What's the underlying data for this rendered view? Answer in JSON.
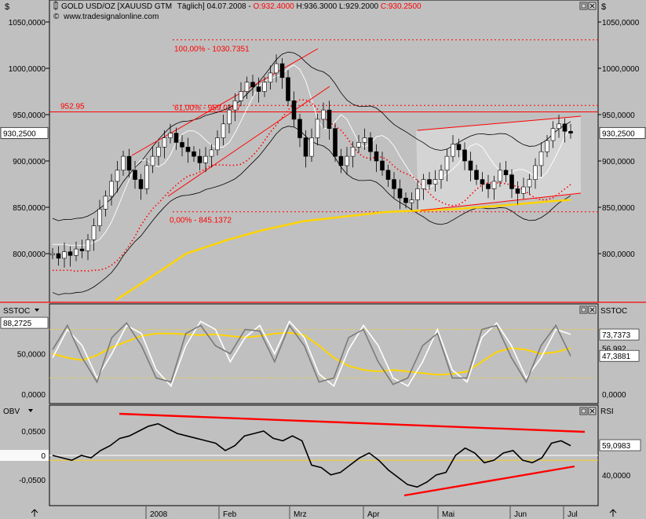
{
  "header": {
    "symbol": "GOLD USD/OZ [XAUUSD GTM",
    "period": "Täglich] 04.07.2008 - ",
    "ohlc_o": "O:932.4000",
    "ohlc_h": "H:936.3000",
    "ohlc_l": "L:929.2000",
    "ohlc_c": "C:930.2500",
    "website": "www.tradesignalonline.com",
    "currency_left": "$",
    "currency_right": "$"
  },
  "colors": {
    "background": "#c0c0c0",
    "red": "#ff0000",
    "yellow": "#ffd400",
    "white": "#ffffff",
    "black": "#000000",
    "gray_line": "#7a7a7a"
  },
  "icons": [
    "menu-arrow-icon",
    "maximize-icon",
    "close-icon",
    "up-arrow-icon"
  ],
  "chart_data": [
    {
      "type": "line",
      "panel": "price",
      "title": "GOLD USD/OZ",
      "yticks": [
        "1050,0000",
        "1000,0000",
        "950,0000",
        "900,0000",
        "850,0000",
        "800,0000"
      ],
      "ytick_values": [
        1050,
        1000,
        950,
        900,
        850,
        800
      ],
      "ylim": [
        750,
        1063
      ],
      "current_label": "930,2500",
      "current_value": 930.25,
      "xticks": [
        "2008",
        "Feb",
        "Mrz",
        "Apr",
        "Mai",
        "Jun",
        "Jul"
      ],
      "annotations": {
        "fib_100": "100,00% - 1030.7351",
        "fib_61": "61,00% - 959.0367",
        "fib_0": "0,00% - 845.1372",
        "level": "952.95"
      },
      "levels": {
        "fib_100": 1030.7351,
        "fib_61": 959.0367,
        "fib_0": 845.1372,
        "resistance": 952.95,
        "dotted_upper": 960
      },
      "price_closes": [
        800,
        795,
        802,
        798,
        805,
        803,
        815,
        830,
        848,
        862,
        878,
        890,
        905,
        890,
        880,
        870,
        895,
        905,
        915,
        925,
        930,
        920,
        915,
        910,
        905,
        898,
        905,
        912,
        925,
        940,
        955,
        965,
        975,
        985,
        980,
        975,
        985,
        995,
        1005,
        990,
        965,
        945,
        925,
        905,
        925,
        945,
        955,
        935,
        905,
        895,
        905,
        915,
        920,
        925,
        910,
        900,
        890,
        880,
        870,
        860,
        855,
        858,
        870,
        880,
        875,
        880,
        890,
        905,
        918,
        912,
        900,
        890,
        880,
        875,
        870,
        878,
        890,
        885,
        870,
        865,
        872,
        880,
        895,
        910,
        922,
        935,
        940,
        932,
        930
      ],
      "sma_yellow": [
        [
          0.38,
          750
        ],
        [
          0.55,
          770
        ],
        [
          0.8,
          800
        ],
        [
          1.05,
          815
        ],
        [
          1.25,
          825
        ],
        [
          1.5,
          835
        ],
        [
          1.75,
          840
        ],
        [
          2.0,
          845
        ],
        [
          2.4,
          848
        ],
        [
          2.7,
          852
        ],
        [
          2.95,
          856
        ],
        [
          3.1,
          858
        ]
      ],
      "series": [
        {
          "name": "",
          "role": "close",
          "color": "#000000"
        },
        {
          "name": "",
          "role": "upper band",
          "color": "#000000"
        },
        {
          "name": "",
          "role": "lower band",
          "color": "#000000"
        },
        {
          "name": "",
          "role": "white average",
          "color": "#ffffff"
        },
        {
          "name": "",
          "role": "dotted red average",
          "color": "#ff0000"
        },
        {
          "name": "",
          "role": "moving average",
          "color": "#ffd400"
        }
      ]
    },
    {
      "type": "line",
      "panel": "oscillator",
      "title": "SSTOC",
      "yticks_left": [
        "88,2725",
        "50,0000",
        "0,0000"
      ],
      "yticks_right": [
        "73,7373",
        "56,992",
        "47,3881",
        "0,0000"
      ],
      "ylim": [
        -5,
        100
      ],
      "levels": [
        80,
        20
      ],
      "series": [
        {
          "name": "",
          "color": "#ffd400",
          "values": [
            50,
            45,
            42,
            48,
            58,
            65,
            72,
            75,
            75,
            74,
            73,
            74,
            72,
            70,
            72,
            75,
            76,
            73,
            60,
            45,
            35,
            30,
            28,
            30,
            28,
            26,
            24,
            25,
            28,
            40,
            52,
            57,
            55,
            50,
            52,
            57
          ]
        },
        {
          "name": "",
          "color": "#ffffff",
          "values": [
            45,
            80,
            60,
            20,
            50,
            85,
            75,
            30,
            10,
            60,
            90,
            80,
            40,
            70,
            85,
            50,
            90,
            70,
            25,
            10,
            55,
            85,
            60,
            20,
            10,
            40,
            80,
            30,
            15,
            70,
            88,
            60,
            20,
            45,
            80,
            74
          ]
        },
        {
          "name": "",
          "color": "#7a7a7a",
          "values": [
            55,
            85,
            45,
            15,
            70,
            88,
            60,
            20,
            15,
            75,
            85,
            60,
            50,
            80,
            78,
            40,
            85,
            60,
            15,
            20,
            70,
            80,
            40,
            12,
            20,
            60,
            75,
            20,
            20,
            80,
            85,
            45,
            15,
            60,
            85,
            47
          ]
        }
      ]
    },
    {
      "type": "line",
      "panel": "obv",
      "title": "OBV",
      "right_title": "RSI",
      "yticks_left": [
        "0,0500",
        "0",
        "-0,0500"
      ],
      "yticks_right": [
        "59,0983",
        "40,0000"
      ],
      "ylim_left": [
        -0.085,
        0.085
      ],
      "current_rsi": 59.0983,
      "series": [
        {
          "name": "",
          "role": "OBV",
          "color": "#000000",
          "values": [
            0,
            -0.005,
            -0.01,
            0.0,
            -0.005,
            0.01,
            0.02,
            0.035,
            0.04,
            0.05,
            0.06,
            0.065,
            0.055,
            0.045,
            0.04,
            0.035,
            0.03,
            0.025,
            0.01,
            0.02,
            0.04,
            0.045,
            0.05,
            0.035,
            0.03,
            0.04,
            0.03,
            -0.02,
            -0.025,
            -0.04,
            -0.035,
            -0.02,
            -0.005,
            0.005,
            -0.01,
            -0.03,
            -0.045,
            -0.06,
            -0.065,
            -0.055,
            -0.04,
            -0.035,
            0.0,
            0.015,
            0.005,
            -0.015,
            -0.01,
            0.005,
            0.01,
            -0.01,
            -0.015,
            -0.005,
            0.025,
            0.03,
            0.02
          ]
        },
        {
          "name": "",
          "role": "resistance trendline",
          "color": "#ff0000",
          "points": [
            [
              0.15,
              0.072
            ],
            [
              1.0,
              0.038
            ]
          ]
        },
        {
          "name": "",
          "role": "support trendline",
          "color": "#ff0000",
          "points": [
            [
              0.58,
              -0.075
            ],
            [
              0.84,
              -0.025
            ]
          ]
        }
      ]
    }
  ]
}
